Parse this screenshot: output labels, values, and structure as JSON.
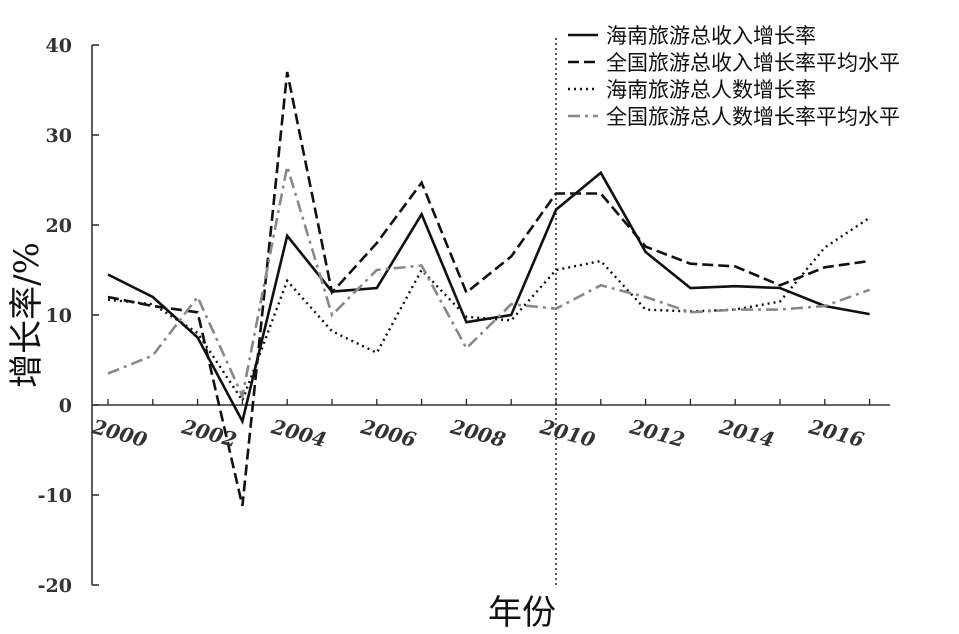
{
  "chart_data": {
    "type": "line",
    "xlabel": "年份",
    "ylabel": "增长率/%",
    "xlim": [
      2000,
      2017
    ],
    "ylim": [
      -20,
      40
    ],
    "x": [
      2000,
      2001,
      2002,
      2003,
      2004,
      2005,
      2006,
      2007,
      2008,
      2009,
      2010,
      2011,
      2012,
      2013,
      2014,
      2015,
      2016,
      2017
    ],
    "x_ticks": [
      "2000",
      "2002",
      "2004",
      "2006",
      "2008",
      "2010",
      "2012",
      "2014",
      "2016"
    ],
    "y_ticks": [
      "40",
      "30",
      "20",
      "10",
      "0",
      "-10",
      "-20"
    ],
    "reference_line_x": 2010,
    "legend_position": "top-right",
    "grid": false,
    "series": [
      {
        "name": "海南旅游总收入增长率",
        "style": "solid",
        "color": "#111111",
        "values": [
          14.5,
          12.0,
          7.5,
          -1.8,
          18.8,
          12.6,
          13.0,
          21.2,
          9.2,
          10.0,
          21.7,
          25.8,
          17.0,
          13.0,
          13.2,
          13.0,
          11.0,
          10.1
        ]
      },
      {
        "name": "全国旅游总收入增长率平均水平",
        "style": "dashed",
        "color": "#111111",
        "values": [
          12.0,
          11.0,
          10.3,
          -11.2,
          37.0,
          12.5,
          18.0,
          24.7,
          12.5,
          16.5,
          23.5,
          23.5,
          17.6,
          15.7,
          15.4,
          13.3,
          15.3,
          16.0
        ]
      },
      {
        "name": "海南旅游总人数增长率",
        "style": "dotted",
        "color": "#111111",
        "values": [
          11.7,
          11.2,
          8.0,
          0.5,
          13.8,
          8.2,
          5.8,
          15.0,
          9.8,
          9.4,
          15.0,
          16.0,
          10.6,
          10.4,
          10.6,
          11.5,
          17.5,
          20.8
        ]
      },
      {
        "name": "全国旅游总人数增长率平均水平",
        "style": "dashdot",
        "color": "#888888",
        "values": [
          3.5,
          5.5,
          12.0,
          1.0,
          26.5,
          10.0,
          15.0,
          15.5,
          6.3,
          11.2,
          10.7,
          13.3,
          12.0,
          10.3,
          10.6,
          10.6,
          11.0,
          12.8
        ]
      }
    ]
  }
}
